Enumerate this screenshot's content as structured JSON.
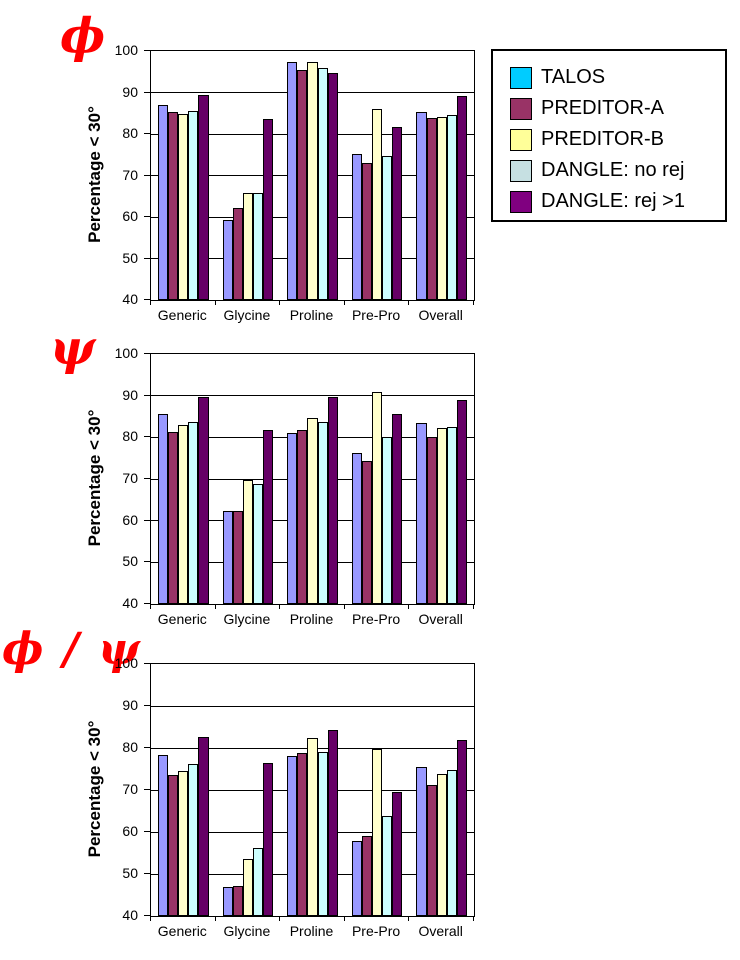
{
  "figure": {
    "background": "#FFFFFF",
    "title_color": "#FF0000",
    "axis_color": "#000000"
  },
  "series_colors": [
    "#9999FF",
    "#993366",
    "#FFFFCC",
    "#CCFFFF",
    "#660066"
  ],
  "legend": {
    "items": [
      {
        "label": "TALOS",
        "swatch": "#00CCFF"
      },
      {
        "label": "PREDITOR-A",
        "swatch": "#993366"
      },
      {
        "label": "PREDITOR-B",
        "swatch": "#FFFF99"
      },
      {
        "label": "DANGLE: no rej",
        "swatch": "#C6E0E2"
      },
      {
        "label": "DANGLE: rej >1",
        "swatch": "#800080"
      }
    ]
  },
  "chart_data": [
    {
      "type": "bar",
      "title": "ϕ",
      "ylabel": "Percentage < 30°",
      "ylim": [
        40,
        100
      ],
      "yticks": [
        40,
        50,
        60,
        70,
        80,
        90,
        100
      ],
      "grid": true,
      "legend_position": "right",
      "categories": [
        "Generic",
        "Glycine",
        "Proline",
        "Pre-Pro",
        "Overall"
      ],
      "series": [
        {
          "name": "TALOS",
          "values": [
            87.1,
            59.3,
            97.4,
            75.2,
            85.4
          ]
        },
        {
          "name": "PREDITOR-A",
          "values": [
            85.2,
            62.2,
            95.5,
            73.0,
            83.9
          ]
        },
        {
          "name": "PREDITOR-B",
          "values": [
            84.9,
            65.7,
            97.4,
            86.0,
            84.1
          ]
        },
        {
          "name": "DANGLE: no rej",
          "values": [
            85.6,
            65.7,
            95.8,
            74.7,
            84.5
          ]
        },
        {
          "name": "DANGLE: rej >1",
          "values": [
            89.4,
            83.6,
            94.8,
            81.6,
            89.2
          ]
        }
      ]
    },
    {
      "type": "bar",
      "title": "ψ",
      "ylabel": "Percentage < 30°",
      "ylim": [
        40,
        100
      ],
      "yticks": [
        40,
        50,
        60,
        70,
        80,
        90,
        100
      ],
      "grid": true,
      "categories": [
        "Generic",
        "Glycine",
        "Proline",
        "Pre-Pro",
        "Overall"
      ],
      "series": [
        {
          "name": "TALOS",
          "values": [
            85.5,
            62.4,
            81.0,
            76.2,
            83.5
          ]
        },
        {
          "name": "PREDITOR-A",
          "values": [
            81.4,
            62.4,
            81.8,
            74.4,
            80.1
          ]
        },
        {
          "name": "PREDITOR-B",
          "values": [
            83.0,
            69.8,
            84.6,
            91.0,
            82.3
          ]
        },
        {
          "name": "DANGLE: no rej",
          "values": [
            83.8,
            68.8,
            83.6,
            80.2,
            82.4
          ]
        },
        {
          "name": "DANGLE: rej >1",
          "values": [
            89.7,
            81.8,
            89.6,
            85.7,
            89.0
          ]
        }
      ]
    },
    {
      "type": "bar",
      "title": "ϕ / ψ",
      "ylabel": "Percentage < 30°",
      "ylim": [
        40,
        100
      ],
      "yticks": [
        40,
        50,
        60,
        70,
        80,
        90,
        100
      ],
      "grid": true,
      "categories": [
        "Generic",
        "Glycine",
        "Proline",
        "Pre-Pro",
        "Overall"
      ],
      "series": [
        {
          "name": "TALOS",
          "values": [
            78.3,
            46.8,
            78.1,
            57.8,
            75.5
          ]
        },
        {
          "name": "PREDITOR-A",
          "values": [
            73.5,
            47.2,
            78.9,
            59.0,
            71.3
          ]
        },
        {
          "name": "PREDITOR-B",
          "values": [
            74.5,
            53.6,
            82.5,
            79.8,
            73.8
          ]
        },
        {
          "name": "DANGLE: no rej",
          "values": [
            76.2,
            56.2,
            79.0,
            63.8,
            74.8
          ]
        },
        {
          "name": "DANGLE: rej >1",
          "values": [
            82.6,
            76.4,
            84.3,
            69.5,
            81.9
          ]
        }
      ]
    }
  ]
}
